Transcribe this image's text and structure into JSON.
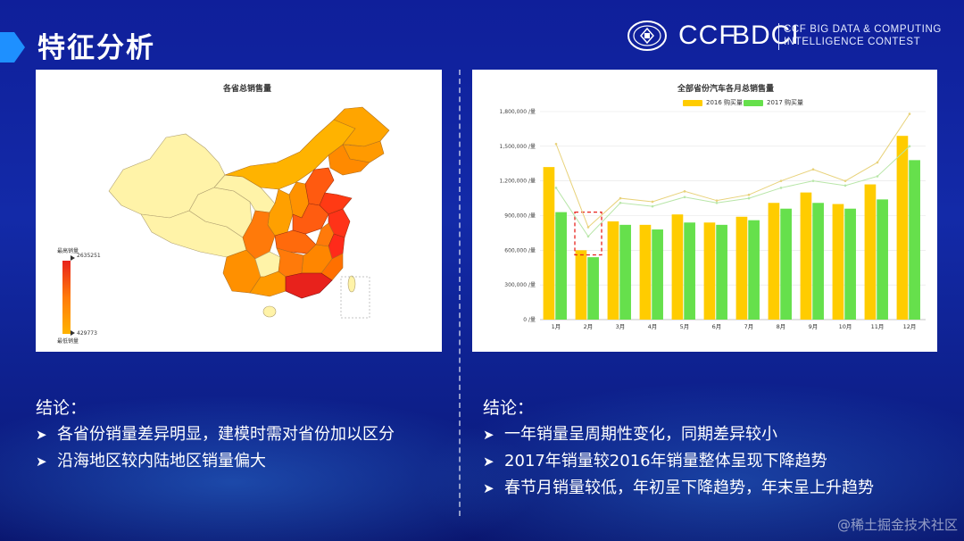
{
  "slide": {
    "title": "特征分析",
    "logo": {
      "ccf": "CCF",
      "bdci": "BDCI",
      "line1": "CCF BIG DATA & COMPUTING",
      "line2": "INTELLIGENCE CONTEST"
    },
    "watermark": "@稀土掘金技术社区",
    "colors": {
      "background": "#132aa8",
      "accent": "#1e90ff",
      "bar_2016": "#ffcc00",
      "bar_2017": "#66e04c",
      "map_high": "#e8221c",
      "map_low": "#fff7b0"
    }
  },
  "map_panel": {
    "title": "各省总销售量",
    "scale_max_label": "最高销量",
    "scale_max_value": "2635251",
    "scale_min_label": "最低销量",
    "scale_min_value": "429773"
  },
  "chart_panel": {
    "title": "全部省份汽车各月总销售量"
  },
  "chart_data": {
    "type": "bar",
    "title": "全部省份汽车各月总销售量",
    "categories": [
      "1月",
      "2月",
      "3月",
      "4月",
      "5月",
      "6月",
      "7月",
      "8月",
      "9月",
      "10月",
      "11月",
      "12月"
    ],
    "series": [
      {
        "name": "2016 购买量",
        "values": [
          1320000,
          600000,
          850000,
          820000,
          910000,
          840000,
          890000,
          1010000,
          1100000,
          1000000,
          1170000,
          1590000
        ]
      },
      {
        "name": "2017 购买量",
        "values": [
          930000,
          540000,
          820000,
          780000,
          840000,
          820000,
          860000,
          960000,
          1010000,
          960000,
          1040000,
          1380000
        ]
      }
    ],
    "line_series": [
      [
        1520000,
        800000,
        1050000,
        1020000,
        1110000,
        1030000,
        1080000,
        1200000,
        1300000,
        1200000,
        1360000,
        1780000
      ],
      [
        1140000,
        720000,
        1010000,
        980000,
        1060000,
        1010000,
        1050000,
        1140000,
        1200000,
        1160000,
        1240000,
        1500000
      ]
    ],
    "ylim": [
      0,
      1800000
    ],
    "yticks": [
      "1,800,000 /量",
      "1,500,000 /量",
      "1,200,000 /量",
      "900,000 /量",
      "600,000 /量",
      "300,000 /量",
      "0 /量"
    ],
    "ytick_values": [
      1800000,
      1500000,
      1200000,
      900000,
      600000,
      300000,
      0
    ],
    "legend_position": "top",
    "highlight_category": "2月"
  },
  "conclusions": {
    "left": {
      "heading": "结论：",
      "items": [
        "各省份销量差异明显，建模时需对省份加以区分",
        "沿海地区较内陆地区销量偏大"
      ]
    },
    "right": {
      "heading": "结论：",
      "items": [
        "一年销量呈周期性变化，同期差异较小",
        "2017年销量较2016年销量整体呈现下降趋势",
        "春节月销量较低，年初呈下降趋势，年末呈上升趋势"
      ]
    }
  }
}
